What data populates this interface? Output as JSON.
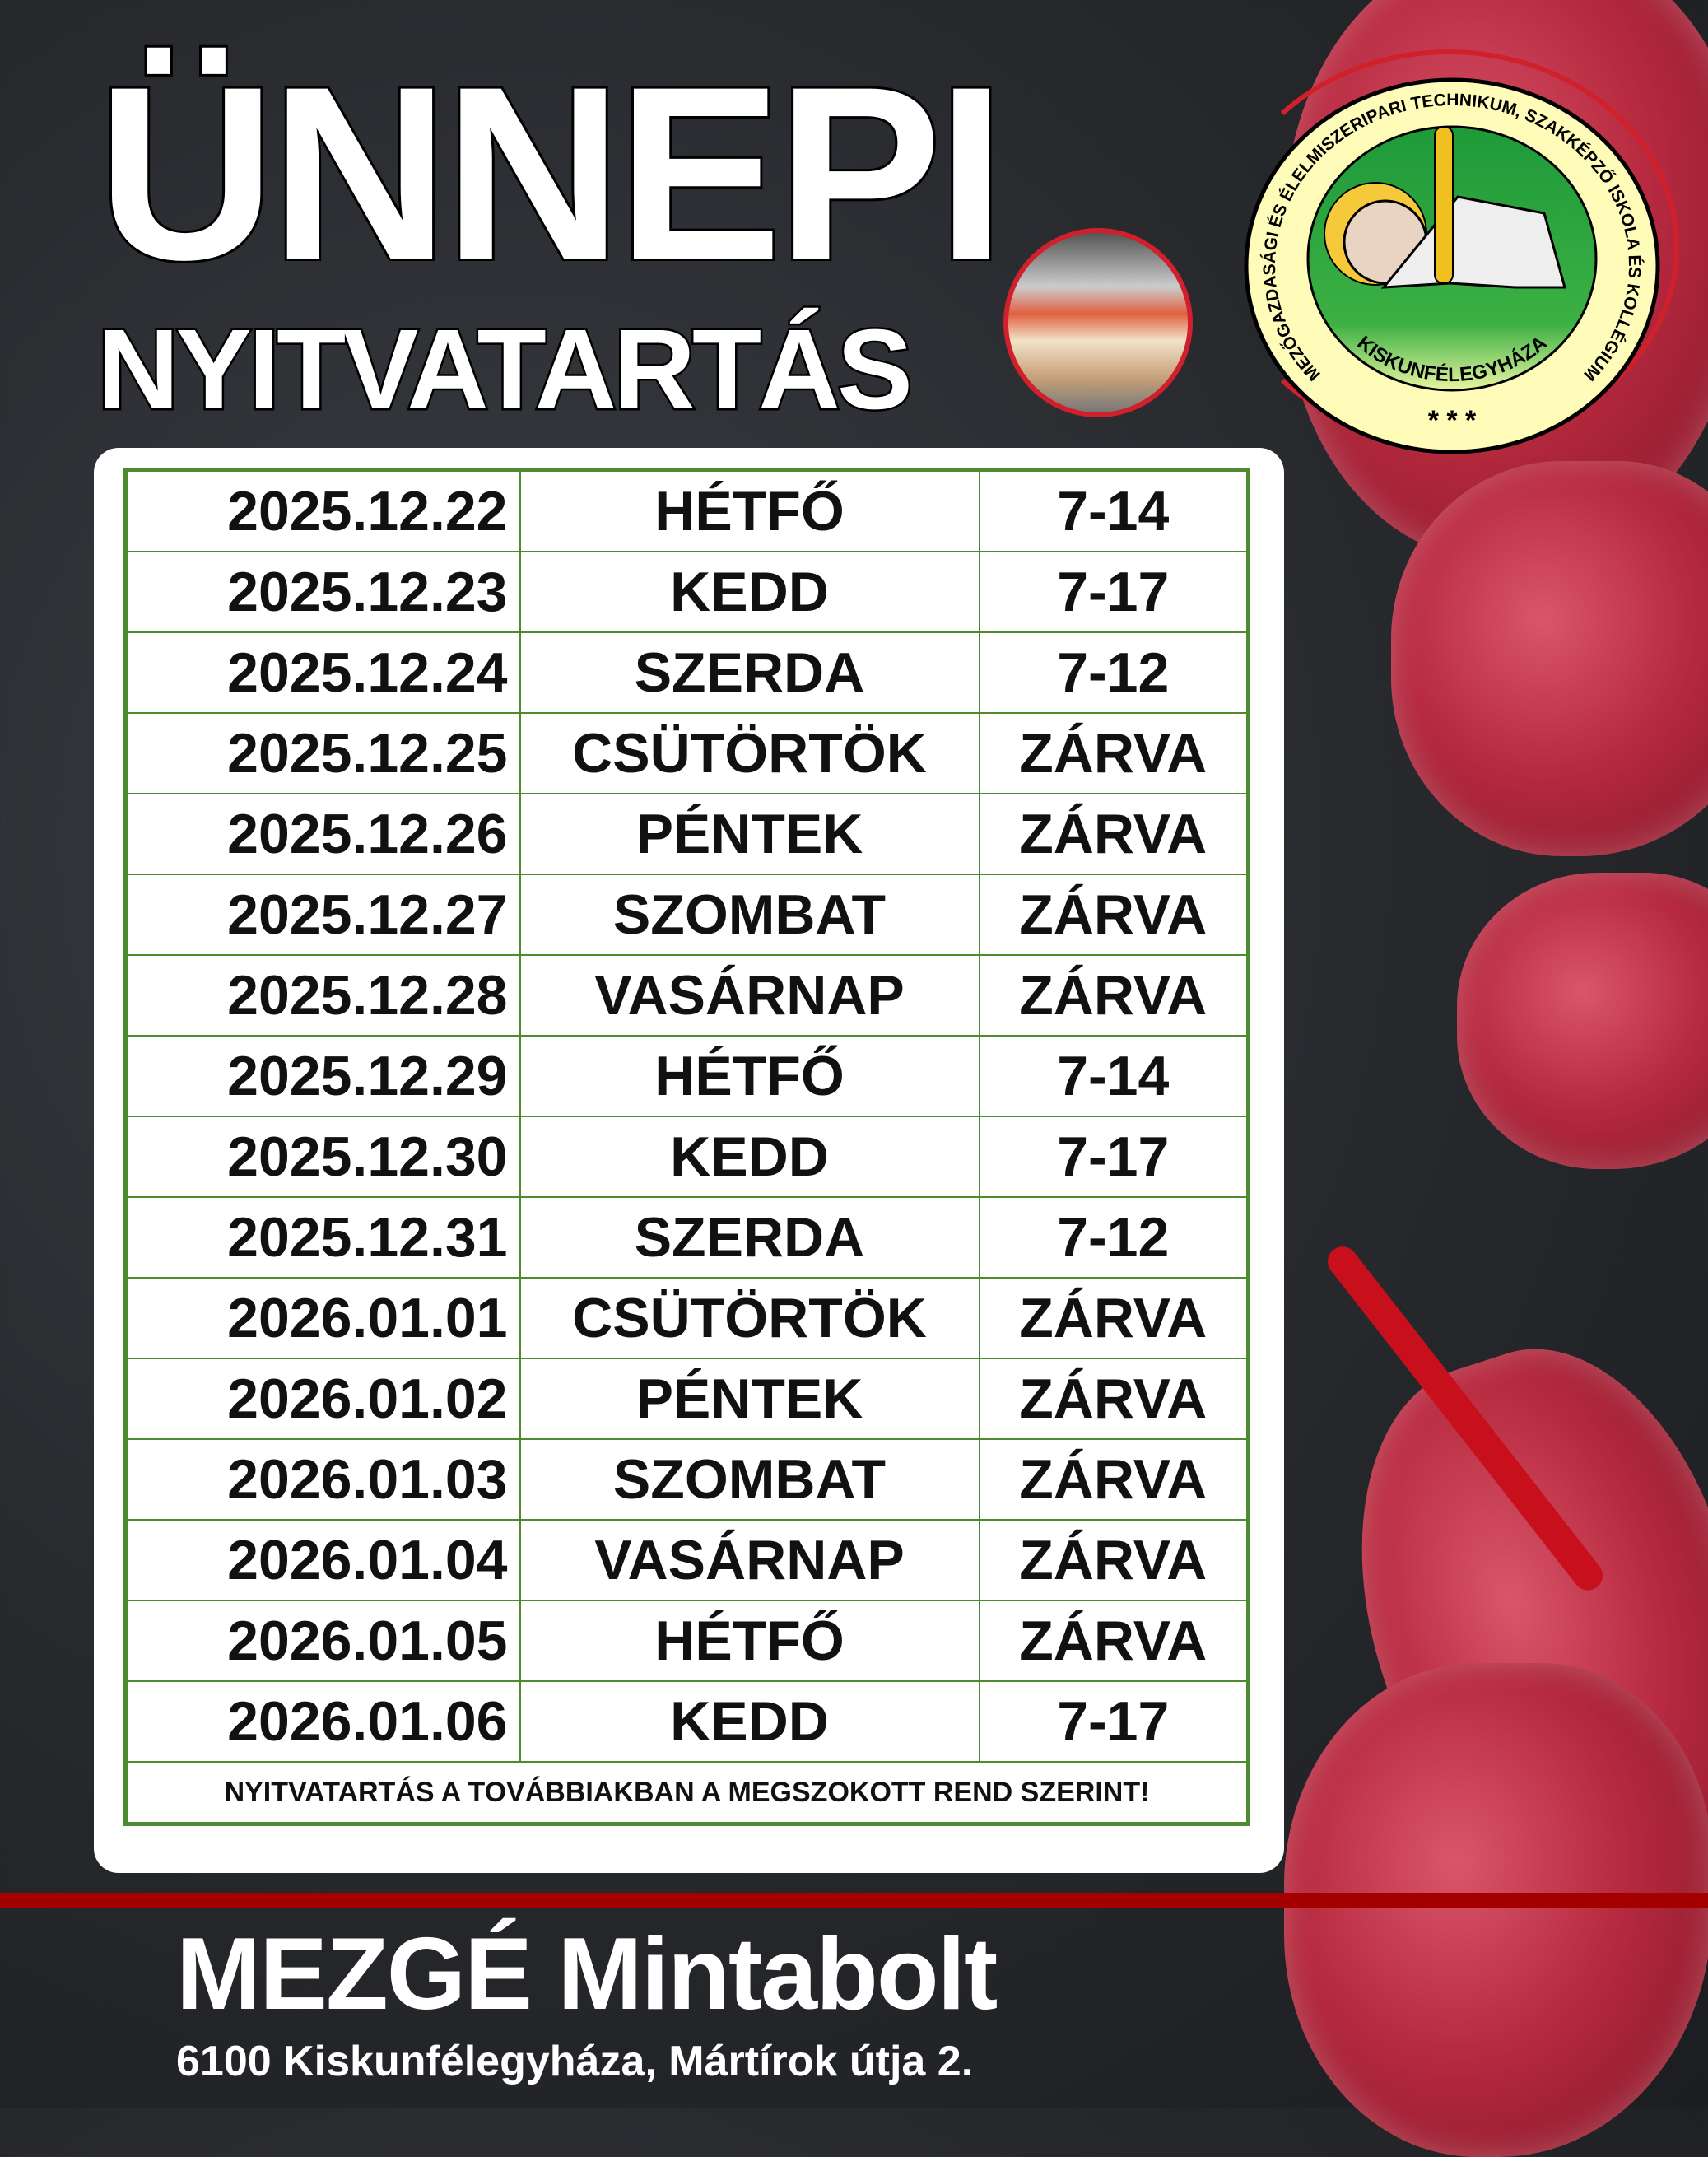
{
  "header": {
    "title_line1": "ÜNNEPI",
    "title_line2": "NYITVATARTÁS"
  },
  "logo": {
    "text_outer": "MEZŐGAZDASÁGI ÉS ÉLELMISZERIPARI TECHNIKUM, SZAKKÉPZŐ ISKOLA ÉS KOLLÉGIUM",
    "text_city": "KISKUNFÉLEGYHÁZA",
    "stars": "* * *"
  },
  "schedule": [
    {
      "date": "2025.12.22",
      "day": "HÉTFŐ",
      "hours": "7-14"
    },
    {
      "date": "2025.12.23",
      "day": "KEDD",
      "hours": "7-17"
    },
    {
      "date": "2025.12.24",
      "day": "SZERDA",
      "hours": "7-12"
    },
    {
      "date": "2025.12.25",
      "day": "CSÜTÖRTÖK",
      "hours": "ZÁRVA"
    },
    {
      "date": "2025.12.26",
      "day": "PÉNTEK",
      "hours": "ZÁRVA"
    },
    {
      "date": "2025.12.27",
      "day": "SZOMBAT",
      "hours": "ZÁRVA"
    },
    {
      "date": "2025.12.28",
      "day": "VASÁRNAP",
      "hours": "ZÁRVA"
    },
    {
      "date": "2025.12.29",
      "day": "HÉTFŐ",
      "hours": "7-14"
    },
    {
      "date": "2025.12.30",
      "day": "KEDD",
      "hours": "7-17"
    },
    {
      "date": "2025.12.31",
      "day": "SZERDA",
      "hours": "7-12"
    },
    {
      "date": "2026.01.01",
      "day": "CSÜTÖRTÖK",
      "hours": "ZÁRVA"
    },
    {
      "date": "2026.01.02",
      "day": "PÉNTEK",
      "hours": "ZÁRVA"
    },
    {
      "date": "2026.01.03",
      "day": "SZOMBAT",
      "hours": "ZÁRVA"
    },
    {
      "date": "2026.01.04",
      "day": "VASÁRNAP",
      "hours": "ZÁRVA"
    },
    {
      "date": "2026.01.05",
      "day": "HÉTFŐ",
      "hours": "ZÁRVA"
    },
    {
      "date": "2026.01.06",
      "day": "KEDD",
      "hours": "7-17"
    }
  ],
  "footer_note": "NYITVATARTÁS A TOVÁBBIAKBAN A MEGSZOKOTT REND SZERINT!",
  "shop": {
    "name": "MEZGÉ Mintabolt",
    "address": "6100 Kiskunfélegyháza, Mártírok útja 2."
  },
  "colors": {
    "table_border": "#4e8a2e",
    "accent_red": "#a50000",
    "ring_red": "#d0202c"
  }
}
